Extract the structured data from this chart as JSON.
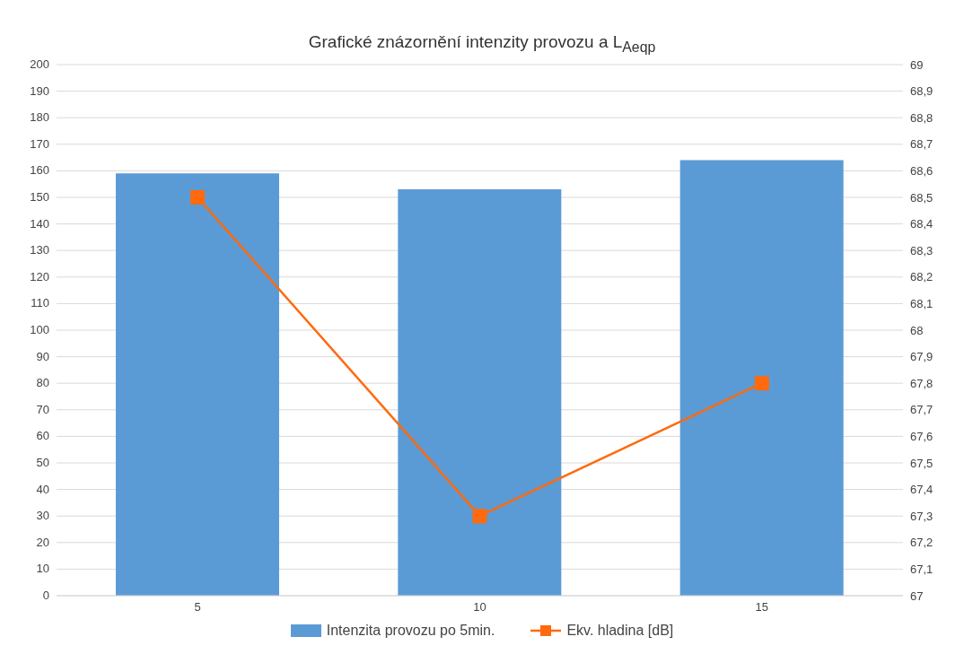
{
  "chart_data": {
    "type": "bar",
    "title": "Grafické znázornění intenzity provozu a L$_{Aeqp}$",
    "categories": [
      "5",
      "10",
      "15"
    ],
    "series": [
      {
        "name": "Intenzita provozu po 5min.",
        "color": "#5b9bd5",
        "values": [
          159,
          153,
          164
        ]
      },
      {
        "name": "Ekv. hladina  [dB]",
        "type": "line",
        "axis": "y2",
        "color": "#ff6a0e",
        "values": [
          68.5,
          67.3,
          67.8
        ]
      }
    ],
    "ylim": [
      0,
      200
    ],
    "yticks": [
      0,
      10,
      20,
      30,
      40,
      50,
      60,
      70,
      80,
      90,
      100,
      110,
      120,
      130,
      140,
      150,
      160,
      170,
      180,
      190,
      200
    ],
    "y2lim": [
      67,
      69
    ],
    "y2ticks": [
      67,
      {
        "value": 67.1,
        "label": "67,1"
      },
      {
        "value": 67.2,
        "label": "67,2"
      },
      {
        "value": 67.3,
        "label": "67,3"
      },
      {
        "value": 67.4,
        "label": "67,4"
      },
      {
        "value": 67.5,
        "label": "67,5"
      },
      {
        "value": 67.6,
        "label": "67,6"
      },
      {
        "value": 67.7,
        "label": "67,7"
      },
      {
        "value": 67.8,
        "label": "67,8"
      },
      {
        "value": 67.9,
        "label": "67,9"
      },
      68,
      {
        "value": 68.1,
        "label": "68,1"
      },
      {
        "value": 68.2,
        "label": "68,2"
      },
      {
        "value": 68.3,
        "label": "68,3"
      },
      {
        "value": 68.4,
        "label": "68,4"
      },
      {
        "value": 68.5,
        "label": "68,5"
      },
      {
        "value": 68.6,
        "label": "68,6"
      },
      {
        "value": 68.7,
        "label": "68,7"
      },
      {
        "value": 68.8,
        "label": "68,8"
      },
      {
        "value": 68.9,
        "label": "68,9"
      },
      69
    ],
    "grid": "y",
    "legend": "bottom",
    "marker": "square"
  }
}
